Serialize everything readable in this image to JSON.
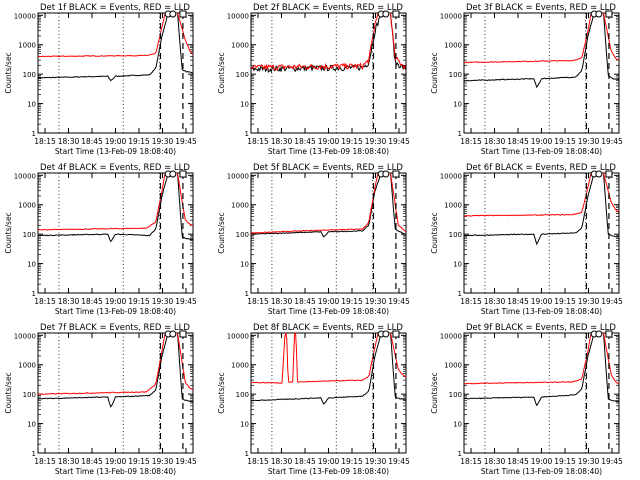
{
  "chart_data": [
    {
      "type": "line",
      "title": "Det 1f BLACK = Events, RED = LLD",
      "xlabel": "Start Time (13-Feb-09 18:08:40)",
      "ylabel": "Counts/sec",
      "series": [
        {
          "name": "Events",
          "color": "#000000",
          "keys": [
            [
              0,
              75
            ],
            [
              0.45,
              85
            ],
            [
              0.47,
              60
            ],
            [
              0.5,
              85
            ],
            [
              0.72,
              95
            ],
            [
              0.76,
              160
            ],
            [
              0.8,
              2000
            ],
            [
              0.84,
              12000
            ],
            [
              0.9,
              12000
            ],
            [
              0.93,
              140
            ],
            [
              0.96,
              120
            ],
            [
              1,
              110
            ]
          ]
        },
        {
          "name": "LLD",
          "color": "#ff0000",
          "keys": [
            [
              0,
              400
            ],
            [
              0.7,
              430
            ],
            [
              0.76,
              500
            ],
            [
              0.8,
              4000
            ],
            [
              0.82,
              12000
            ],
            [
              0.9,
              12000
            ],
            [
              0.95,
              1500
            ],
            [
              0.98,
              600
            ],
            [
              1,
              470
            ]
          ]
        }
      ]
    },
    {
      "type": "line",
      "title": "Det 2f BLACK = Events, RED = LLD",
      "xlabel": "Start Time (13-Feb-09 18:08:40)",
      "ylabel": "Counts/sec",
      "series": [
        {
          "name": "Events",
          "color": "#000000",
          "keys": [
            [
              0,
              150
            ],
            [
              0.5,
              165
            ],
            [
              0.72,
              170
            ],
            [
              0.76,
              250
            ],
            [
              0.8,
              3000
            ],
            [
              0.84,
              12000
            ],
            [
              0.9,
              12000
            ],
            [
              0.93,
              250
            ],
            [
              1,
              150
            ]
          ],
          "noise": 0.22
        },
        {
          "name": "LLD",
          "color": "#ff0000",
          "keys": [
            [
              0,
              170
            ],
            [
              0.5,
              185
            ],
            [
              0.72,
              190
            ],
            [
              0.76,
              300
            ],
            [
              0.8,
              5000
            ],
            [
              0.82,
              12000
            ],
            [
              0.9,
              12000
            ],
            [
              0.93,
              350
            ],
            [
              1,
              170
            ]
          ],
          "noise": 0.22
        }
      ]
    },
    {
      "type": "line",
      "title": "Det 3f BLACK = Events, RED = LLD",
      "xlabel": "Start Time (13-Feb-09 18:08:40)",
      "ylabel": "Counts/sec",
      "series": [
        {
          "name": "Events",
          "color": "#000000",
          "keys": [
            [
              0,
              60
            ],
            [
              0.45,
              70
            ],
            [
              0.47,
              35
            ],
            [
              0.5,
              70
            ],
            [
              0.72,
              80
            ],
            [
              0.76,
              130
            ],
            [
              0.8,
              2000
            ],
            [
              0.84,
              12000
            ],
            [
              0.9,
              12000
            ],
            [
              0.93,
              90
            ],
            [
              0.96,
              70
            ],
            [
              1,
              65
            ]
          ]
        },
        {
          "name": "LLD",
          "color": "#ff0000",
          "keys": [
            [
              0,
              250
            ],
            [
              0.7,
              290
            ],
            [
              0.76,
              350
            ],
            [
              0.8,
              3000
            ],
            [
              0.82,
              12000
            ],
            [
              0.9,
              12000
            ],
            [
              0.95,
              600
            ],
            [
              0.98,
              330
            ],
            [
              1,
              300
            ]
          ]
        }
      ]
    },
    {
      "type": "line",
      "title": "Det 4f BLACK = Events, RED = LLD",
      "xlabel": "Start Time (13-Feb-09 18:08:40)",
      "ylabel": "Counts/sec",
      "series": [
        {
          "name": "Events",
          "color": "#000000",
          "keys": [
            [
              0,
              90
            ],
            [
              0.45,
              100
            ],
            [
              0.47,
              55
            ],
            [
              0.5,
              100
            ],
            [
              0.72,
              90
            ],
            [
              0.76,
              150
            ],
            [
              0.8,
              2000
            ],
            [
              0.84,
              12000
            ],
            [
              0.9,
              12000
            ],
            [
              0.93,
              80
            ],
            [
              0.96,
              70
            ],
            [
              1,
              65
            ]
          ]
        },
        {
          "name": "LLD",
          "color": "#ff0000",
          "keys": [
            [
              0,
              140
            ],
            [
              0.7,
              160
            ],
            [
              0.76,
              260
            ],
            [
              0.8,
              3000
            ],
            [
              0.82,
              12000
            ],
            [
              0.9,
              12000
            ],
            [
              0.95,
              300
            ],
            [
              0.98,
              220
            ],
            [
              1,
              190
            ]
          ]
        }
      ]
    },
    {
      "type": "line",
      "title": "Det 5f BLACK = Events, RED = LLD",
      "xlabel": "Start Time (13-Feb-09 18:08:40)",
      "ylabel": "Counts/sec",
      "series": [
        {
          "name": "Events",
          "color": "#000000",
          "keys": [
            [
              0,
              100
            ],
            [
              0.45,
              120
            ],
            [
              0.47,
              80
            ],
            [
              0.5,
              120
            ],
            [
              0.72,
              130
            ],
            [
              0.76,
              200
            ],
            [
              0.8,
              3000
            ],
            [
              0.84,
              12000
            ],
            [
              0.9,
              12000
            ],
            [
              0.93,
              150
            ],
            [
              0.96,
              120
            ],
            [
              1,
              100
            ]
          ]
        },
        {
          "name": "LLD",
          "color": "#ff0000",
          "keys": [
            [
              0,
              110
            ],
            [
              0.5,
              140
            ],
            [
              0.72,
              150
            ],
            [
              0.76,
              250
            ],
            [
              0.8,
              4000
            ],
            [
              0.82,
              12000
            ],
            [
              0.9,
              12000
            ],
            [
              0.95,
              200
            ],
            [
              0.98,
              150
            ],
            [
              1,
              120
            ]
          ]
        }
      ]
    },
    {
      "type": "line",
      "title": "Det 6f BLACK = Events, RED = LLD",
      "xlabel": "Start Time (13-Feb-09 18:08:40)",
      "ylabel": "Counts/sec",
      "series": [
        {
          "name": "Events",
          "color": "#000000",
          "keys": [
            [
              0,
              90
            ],
            [
              0.45,
              100
            ],
            [
              0.47,
              45
            ],
            [
              0.5,
              100
            ],
            [
              0.72,
              110
            ],
            [
              0.76,
              160
            ],
            [
              0.8,
              2000
            ],
            [
              0.84,
              12000
            ],
            [
              0.9,
              12000
            ],
            [
              0.93,
              100
            ],
            [
              0.96,
              85
            ],
            [
              1,
              80
            ]
          ]
        },
        {
          "name": "LLD",
          "color": "#ff0000",
          "keys": [
            [
              0,
              420
            ],
            [
              0.7,
              460
            ],
            [
              0.76,
              550
            ],
            [
              0.8,
              4000
            ],
            [
              0.82,
              12000
            ],
            [
              0.9,
              12000
            ],
            [
              0.95,
              1200
            ],
            [
              0.98,
              650
            ],
            [
              1,
              550
            ]
          ]
        }
      ]
    },
    {
      "type": "line",
      "title": "Det 7f BLACK = Events, RED = LLD",
      "xlabel": "Start Time (13-Feb-09 18:08:40)",
      "ylabel": "Counts/sec",
      "series": [
        {
          "name": "Events",
          "color": "#000000",
          "keys": [
            [
              0,
              70
            ],
            [
              0.45,
              80
            ],
            [
              0.47,
              35
            ],
            [
              0.5,
              80
            ],
            [
              0.72,
              90
            ],
            [
              0.76,
              140
            ],
            [
              0.8,
              2000
            ],
            [
              0.84,
              12000
            ],
            [
              0.9,
              12000
            ],
            [
              0.93,
              70
            ],
            [
              0.96,
              60
            ],
            [
              1,
              55
            ]
          ]
        },
        {
          "name": "LLD",
          "color": "#ff0000",
          "keys": [
            [
              0,
              100
            ],
            [
              0.7,
              120
            ],
            [
              0.76,
              220
            ],
            [
              0.8,
              3000
            ],
            [
              0.82,
              12000
            ],
            [
              0.9,
              12000
            ],
            [
              0.95,
              250
            ],
            [
              0.98,
              160
            ],
            [
              1,
              140
            ]
          ]
        }
      ]
    },
    {
      "type": "line",
      "title": "Det 8f BLACK = Events, RED = LLD",
      "xlabel": "Start Time (13-Feb-09 18:08:40)",
      "ylabel": "Counts/sec",
      "series": [
        {
          "name": "Events",
          "color": "#000000",
          "keys": [
            [
              0,
              60
            ],
            [
              0.45,
              75
            ],
            [
              0.47,
              45
            ],
            [
              0.5,
              75
            ],
            [
              0.72,
              85
            ],
            [
              0.76,
              130
            ],
            [
              0.8,
              2000
            ],
            [
              0.84,
              12000
            ],
            [
              0.9,
              12000
            ],
            [
              0.93,
              80
            ],
            [
              0.96,
              70
            ],
            [
              1,
              65
            ]
          ]
        },
        {
          "name": "LLD",
          "color": "#ff0000",
          "keys": [
            [
              0,
              250
            ],
            [
              0.2,
              240
            ],
            [
              0.22,
              12000
            ],
            [
              0.23,
              12000
            ],
            [
              0.24,
              250
            ],
            [
              0.27,
              260
            ],
            [
              0.28,
              12000
            ],
            [
              0.29,
              12000
            ],
            [
              0.3,
              260
            ],
            [
              0.72,
              300
            ],
            [
              0.76,
              400
            ],
            [
              0.8,
              4000
            ],
            [
              0.82,
              12000
            ],
            [
              0.9,
              12000
            ],
            [
              0.95,
              700
            ],
            [
              0.98,
              450
            ],
            [
              1,
              380
            ]
          ]
        }
      ]
    },
    {
      "type": "line",
      "title": "Det 9f BLACK = Events, RED = LLD",
      "xlabel": "Start Time (13-Feb-09 18:08:40)",
      "ylabel": "Counts/sec",
      "series": [
        {
          "name": "Events",
          "color": "#000000",
          "keys": [
            [
              0,
              70
            ],
            [
              0.45,
              80
            ],
            [
              0.47,
              40
            ],
            [
              0.5,
              80
            ],
            [
              0.72,
              95
            ],
            [
              0.76,
              150
            ],
            [
              0.8,
              2000
            ],
            [
              0.84,
              12000
            ],
            [
              0.9,
              12000
            ],
            [
              0.93,
              70
            ],
            [
              0.96,
              60
            ],
            [
              1,
              55
            ]
          ]
        },
        {
          "name": "LLD",
          "color": "#ff0000",
          "keys": [
            [
              0,
              230
            ],
            [
              0.7,
              260
            ],
            [
              0.76,
              320
            ],
            [
              0.8,
              3000
            ],
            [
              0.82,
              12000
            ],
            [
              0.9,
              12000
            ],
            [
              0.95,
              450
            ],
            [
              0.98,
              260
            ],
            [
              1,
              220
            ]
          ]
        }
      ]
    }
  ],
  "y_ticks": [
    1,
    10,
    100,
    1000,
    10000
  ],
  "y_tick_labels": [
    "1",
    "10",
    "100",
    "1000",
    "10000"
  ],
  "x_tick_labels": [
    "18:15",
    "18:30",
    "18:45",
    "19:00",
    "19:15",
    "19:30",
    "19:45"
  ],
  "ylim": [
    1,
    12000
  ]
}
